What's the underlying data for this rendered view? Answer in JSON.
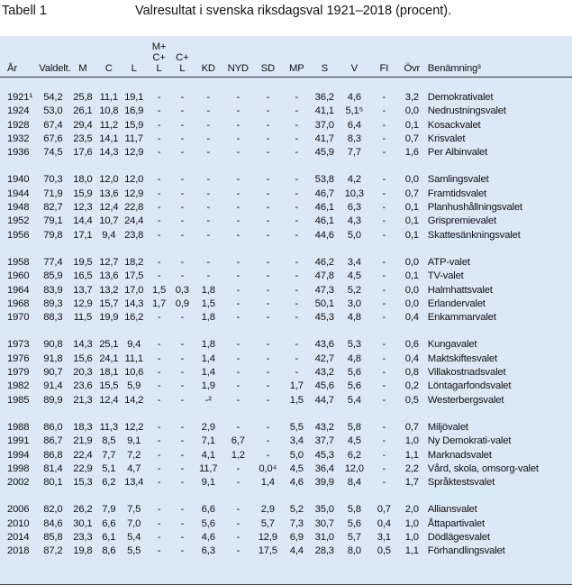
{
  "header": {
    "label": "Tabell 1",
    "caption": "Valresultat i svenska riksdagsval 1921–2018 (procent)."
  },
  "table": {
    "columns": [
      [
        "År"
      ],
      [
        "Valdelt."
      ],
      [
        "M"
      ],
      [
        "C"
      ],
      [
        "L"
      ],
      [
        "M+",
        "C+",
        "L"
      ],
      [
        "C+",
        "L"
      ],
      [
        "KD"
      ],
      [
        "NYD"
      ],
      [
        "SD"
      ],
      [
        "MP"
      ],
      [
        "S"
      ],
      [
        "V"
      ],
      [
        "FI"
      ],
      [
        "Övr"
      ],
      [
        "Benämning³"
      ]
    ],
    "groups": [
      {
        "rows": [
          [
            "1921¹",
            "54,2",
            "25,8",
            "11,1",
            "19,1",
            "-",
            "-",
            "-",
            "-",
            "-",
            "-",
            "36,2",
            "4,6",
            "-",
            "3,2",
            "Demokrativalet"
          ],
          [
            "1924",
            "53,0",
            "26,1",
            "10,8",
            "16,9",
            "-",
            "-",
            "-",
            "-",
            "-",
            "-",
            "41,1",
            "5,1⁵",
            "-",
            "0,0",
            "Nedrustningsvalet"
          ],
          [
            "1928",
            "67,4",
            "29,4",
            "11,2",
            "15,9",
            "-",
            "-",
            "-",
            "-",
            "-",
            "-",
            "37,0",
            "6,4",
            "-",
            "0,1",
            "Kosackvalet"
          ],
          [
            "1932",
            "67,6",
            "23,5",
            "14,1",
            "11,7",
            "-",
            "-",
            "-",
            "-",
            "-",
            "-",
            "41,7",
            "8,3",
            "-",
            "0,7",
            "Krisvalet"
          ],
          [
            "1936",
            "74,5",
            "17,6",
            "14,3",
            "12,9",
            "-",
            "-",
            "-",
            "-",
            "-",
            "-",
            "45,9",
            "7,7",
            "-",
            "1,6",
            "Per Albinvalet"
          ]
        ]
      },
      {
        "rows": [
          [
            "1940",
            "70,3",
            "18,0",
            "12,0",
            "12,0",
            "-",
            "-",
            "-",
            "-",
            "-",
            "-",
            "53,8",
            "4,2",
            "-",
            "0,0",
            "Samlingsvalet"
          ],
          [
            "1944",
            "71,9",
            "15,9",
            "13,6",
            "12,9",
            "-",
            "-",
            "-",
            "-",
            "-",
            "-",
            "46,7",
            "10,3",
            "-",
            "0,7",
            "Framtidsvalet"
          ],
          [
            "1948",
            "82,7",
            "12,3",
            "12,4",
            "22,8",
            "-",
            "-",
            "-",
            "-",
            "-",
            "-",
            "46,1",
            "6,3",
            "-",
            "0,1",
            "Planhushållningsvalet"
          ],
          [
            "1952",
            "79,1",
            "14,4",
            "10,7",
            "24,4",
            "-",
            "-",
            "-",
            "-",
            "-",
            "-",
            "46,1",
            "4,3",
            "-",
            "0,1",
            "Grispremievalet"
          ],
          [
            "1956",
            "79,8",
            "17,1",
            "9,4",
            "23,8",
            "-",
            "-",
            "-",
            "-",
            "-",
            "-",
            "44,6",
            "5,0",
            "-",
            "0,1",
            "Skattesänkningsvalet"
          ]
        ]
      },
      {
        "rows": [
          [
            "1958",
            "77,4",
            "19,5",
            "12,7",
            "18,2",
            "-",
            "-",
            "-",
            "-",
            "-",
            "-",
            "46,2",
            "3,4",
            "-",
            "0,0",
            "ATP-valet"
          ],
          [
            "1960",
            "85,9",
            "16,5",
            "13,6",
            "17,5",
            "-",
            "-",
            "-",
            "-",
            "-",
            "-",
            "47,8",
            "4,5",
            "-",
            "0,1",
            "TV-valet"
          ],
          [
            "1964",
            "83,9",
            "13,7",
            "13,2",
            "17,0",
            "1,5",
            "0,3",
            "1,8",
            "-",
            "-",
            "-",
            "47,3",
            "5,2",
            "-",
            "0,0",
            "Halmhattsvalet"
          ],
          [
            "1968",
            "89,3",
            "12,9",
            "15,7",
            "14,3",
            "1,7",
            "0,9",
            "1,5",
            "-",
            "-",
            "-",
            "50,1",
            "3,0",
            "-",
            "0,0",
            "Erlandervalet"
          ],
          [
            "1970",
            "88,3",
            "11,5",
            "19,9",
            "16,2",
            "-",
            "-",
            "1,8",
            "-",
            "-",
            "-",
            "45,3",
            "4,8",
            "-",
            "0,4",
            "Enkammarvalet"
          ]
        ]
      },
      {
        "rows": [
          [
            "1973",
            "90,8",
            "14,3",
            "25,1",
            "9,4",
            "-",
            "-",
            "1,8",
            "-",
            "-",
            "-",
            "43,6",
            "5,3",
            "-",
            "0,6",
            "Kungavalet"
          ],
          [
            "1976",
            "91,8",
            "15,6",
            "24,1",
            "11,1",
            "-",
            "-",
            "1,4",
            "-",
            "-",
            "-",
            "42,7",
            "4,8",
            "-",
            "0,4",
            "Maktskiftesvalet"
          ],
          [
            "1979",
            "90,7",
            "20,3",
            "18,1",
            "10,6",
            "-",
            "-",
            "1,4",
            "-",
            "-",
            "-",
            "43,2",
            "5,6",
            "-",
            "0,8",
            "Villakostnadsvalet"
          ],
          [
            "1982",
            "91,4",
            "23,6",
            "15,5",
            "5,9",
            "-",
            "-",
            "1,9",
            "-",
            "-",
            "1,7",
            "45,6",
            "5,6",
            "-",
            "0,2",
            "Löntagarfondsvalet"
          ],
          [
            "1985",
            "89,9",
            "21,3",
            "12,4",
            "14,2",
            "-",
            "-",
            "-²",
            "-",
            "-",
            "1,5",
            "44,7",
            "5,4",
            "-",
            "0,5",
            "Westerbergsvalet"
          ]
        ]
      },
      {
        "rows": [
          [
            "1988",
            "86,0",
            "18,3",
            "11,3",
            "12,2",
            "-",
            "-",
            "2,9",
            "-",
            "-",
            "5,5",
            "43,2",
            "5,8",
            "-",
            "0,7",
            "Miljövalet"
          ],
          [
            "1991",
            "86,7",
            "21,9",
            "8,5",
            "9,1",
            "-",
            "-",
            "7,1",
            "6,7",
            "-",
            "3,4",
            "37,7",
            "4,5",
            "-",
            "1,0",
            "Ny Demokrati-valet"
          ],
          [
            "1994",
            "86,8",
            "22,4",
            "7,7",
            "7,2",
            "-",
            "-",
            "4,1",
            "1,2",
            "-",
            "5,0",
            "45,3",
            "6,2",
            "-",
            "1,1",
            "Marknadsvalet"
          ],
          [
            "1998",
            "81,4",
            "22,9",
            "5,1",
            "4,7",
            "-",
            "-",
            "11,7",
            "-",
            "0,0⁴",
            "4,5",
            "36,4",
            "12,0",
            "-",
            "2,2",
            "Vård, skola, omsorg-valet"
          ],
          [
            "2002",
            "80,1",
            "15,3",
            "6,2",
            "13,4",
            "-",
            "-",
            "9,1",
            "-",
            "1,4",
            "4,6",
            "39,9",
            "8,4",
            "-",
            "1,7",
            "Språktestsvalet"
          ]
        ]
      },
      {
        "rows": [
          [
            "2006",
            "82,0",
            "26,2",
            "7,9",
            "7,5",
            "-",
            "-",
            "6,6",
            "-",
            "2,9",
            "5,2",
            "35,0",
            "5,8",
            "0,7",
            "2,0",
            "Alliansvalet"
          ],
          [
            "2010",
            "84,6",
            "30,1",
            "6,6",
            "7,0",
            "-",
            "-",
            "5,6",
            "-",
            "5,7",
            "7,3",
            "30,7",
            "5,6",
            "0,4",
            "1,0",
            "Åttapartivalet"
          ],
          [
            "2014",
            "85,8",
            "23,3",
            "6,1",
            "5,4",
            "-",
            "-",
            "4,6",
            "-",
            "12,9",
            "6,9",
            "31,0",
            "5,7",
            "3,1",
            "1,0",
            "Dödlägesvalet"
          ],
          [
            "2018",
            "87,2",
            "19,8",
            "8,6",
            "5,5",
            "-",
            "-",
            "6,3",
            "-",
            "17,5",
            "4,4",
            "28,3",
            "8,0",
            "0,5",
            "1,1",
            "Förhandlingsvalet"
          ]
        ]
      }
    ]
  }
}
